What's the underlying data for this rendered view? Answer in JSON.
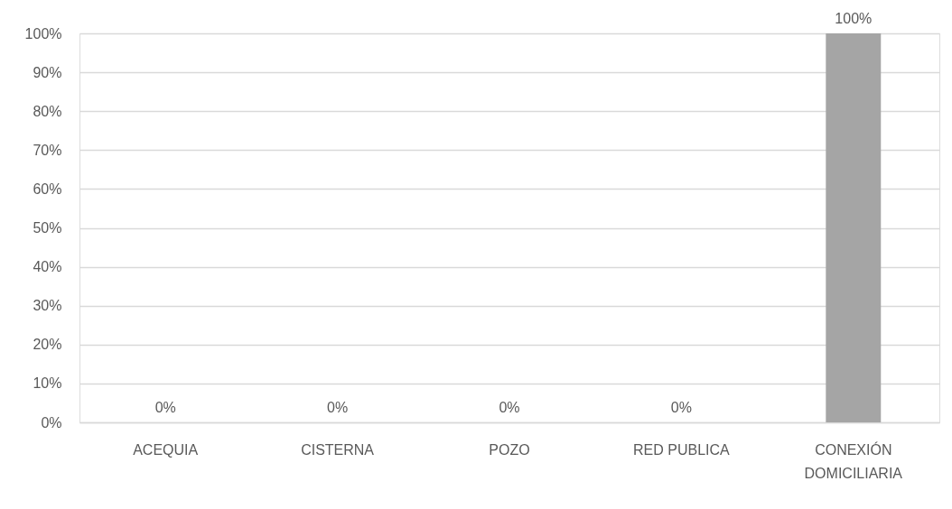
{
  "chart_data": {
    "type": "bar",
    "categories": [
      "ACEQUIA",
      "CISTERNA",
      "POZO",
      "RED PUBLICA",
      "CONEXIÓN DOMICILIARIA"
    ],
    "values": [
      0,
      0,
      0,
      0,
      100
    ],
    "color": "#a5a5a5",
    "ylim": [
      0,
      100
    ],
    "yticks": [
      {
        "value": 0,
        "label": "0%"
      },
      {
        "value": 10,
        "label": "10%"
      },
      {
        "value": 20,
        "label": "20%"
      },
      {
        "value": 30,
        "label": "30%"
      },
      {
        "value": 40,
        "label": "40%"
      },
      {
        "value": 50,
        "label": "50%"
      },
      {
        "value": 60,
        "label": "60%"
      },
      {
        "value": 70,
        "label": "70%"
      },
      {
        "value": 80,
        "label": "80%"
      },
      {
        "value": 90,
        "label": "90%"
      },
      {
        "value": 100,
        "label": "100%"
      }
    ],
    "grid": "y",
    "value_labels": [
      "0%",
      "0%",
      "0%",
      "0%",
      "100%"
    ]
  }
}
